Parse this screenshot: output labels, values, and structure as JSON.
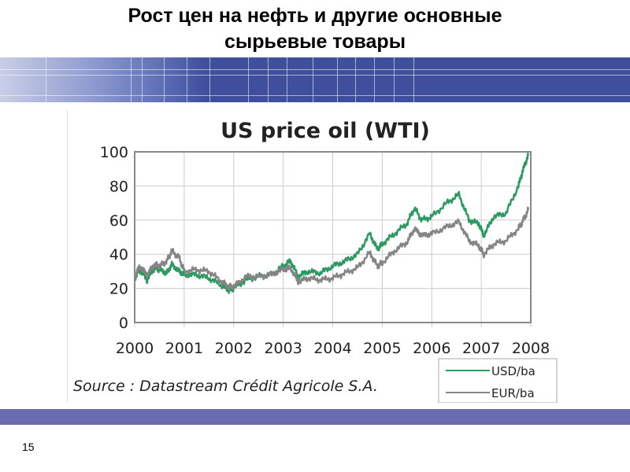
{
  "slide": {
    "title_line1": "Рост цен на нефть и другие основные",
    "title_line2": "сырьевые товары",
    "number": "15"
  },
  "chart_data": {
    "type": "line",
    "title": "US price oil (WTI)",
    "xlabel": "",
    "ylabel": "",
    "xlim": [
      2000,
      2008
    ],
    "ylim": [
      0,
      100
    ],
    "x_ticks": [
      "2000",
      "2001",
      "2002",
      "2003",
      "2004",
      "2005",
      "2006",
      "2007",
      "2008"
    ],
    "y_ticks": [
      "0",
      "20",
      "40",
      "60",
      "80",
      "100"
    ],
    "grid": true,
    "legend_position": "bottom-right",
    "source": "Source : Datastream Crédit Agricole S.A.",
    "series": [
      {
        "name": "USD/ba",
        "color": "#2e9a63",
        "x": [
          2000,
          2000.1,
          2000.25,
          2000.4,
          2000.5,
          2000.65,
          2000.75,
          2000.9,
          2001,
          2001.25,
          2001.5,
          2001.75,
          2001.9,
          2002,
          2002.25,
          2002.5,
          2002.75,
          2003,
          2003.15,
          2003.3,
          2003.5,
          2003.75,
          2004,
          2004.25,
          2004.5,
          2004.75,
          2004.9,
          2005,
          2005.25,
          2005.5,
          2005.65,
          2005.8,
          2006,
          2006.3,
          2006.55,
          2006.75,
          2006.95,
          2007.05,
          2007.25,
          2007.5,
          2007.75,
          2007.85,
          2007.95
        ],
        "values": [
          26,
          31,
          25,
          32,
          31,
          29,
          34,
          30,
          28,
          28,
          26,
          22,
          19,
          20,
          25,
          27,
          28,
          33,
          36,
          27,
          30,
          29,
          33,
          36,
          40,
          52,
          43,
          46,
          52,
          58,
          67,
          60,
          62,
          70,
          75,
          60,
          58,
          51,
          62,
          64,
          80,
          90,
          98
        ]
      },
      {
        "name": "EUR/ba",
        "color": "#858585",
        "x": [
          2000,
          2000.1,
          2000.25,
          2000.4,
          2000.5,
          2000.65,
          2000.75,
          2000.9,
          2001,
          2001.25,
          2001.5,
          2001.75,
          2001.9,
          2002,
          2002.25,
          2002.5,
          2002.75,
          2003,
          2003.15,
          2003.3,
          2003.5,
          2003.75,
          2004,
          2004.25,
          2004.5,
          2004.75,
          2004.9,
          2005,
          2005.25,
          2005.5,
          2005.65,
          2005.8,
          2006,
          2006.3,
          2006.55,
          2006.75,
          2006.95,
          2007.05,
          2007.25,
          2007.5,
          2007.75,
          2007.85,
          2007.95
        ],
        "values": [
          27,
          33,
          28,
          34,
          33,
          36,
          42,
          38,
          30,
          31,
          30,
          24,
          21,
          21,
          27,
          27,
          28,
          31,
          32,
          24,
          26,
          25,
          26,
          29,
          32,
          41,
          33,
          35,
          42,
          47,
          55,
          51,
          52,
          56,
          59,
          48,
          45,
          40,
          46,
          48,
          55,
          60,
          66
        ]
      }
    ]
  }
}
